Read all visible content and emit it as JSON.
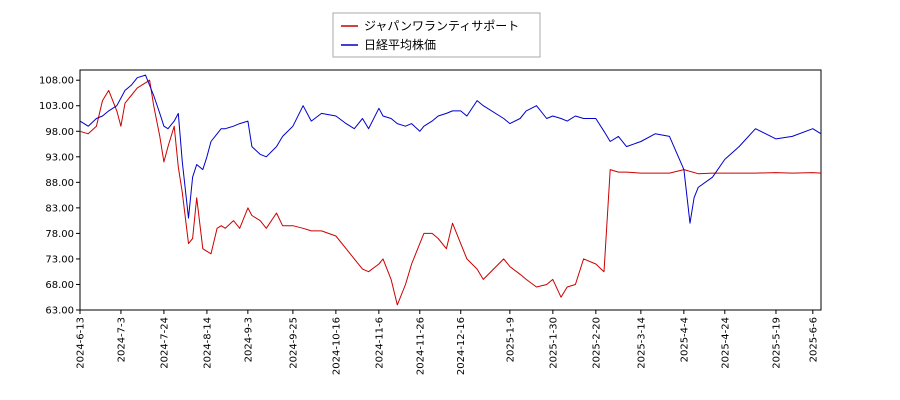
{
  "chart_data": {
    "type": "line",
    "title": "",
    "xlabel": "",
    "ylabel": "",
    "ylim": [
      63.0,
      110.0
    ],
    "xlim": [
      "2024-06-13",
      "2025-06-10"
    ],
    "grid": false,
    "legend": "top-center",
    "y_ticks": [
      63.0,
      68.0,
      73.0,
      78.0,
      83.0,
      88.0,
      93.0,
      98.0,
      103.0,
      108.0
    ],
    "y_tick_labels": [
      "63.00",
      "68.00",
      "73.00",
      "78.00",
      "83.00",
      "88.00",
      "93.00",
      "98.00",
      "103.00",
      "108.00"
    ],
    "x_ticks": [
      "2024-6-13",
      "2024-7-3",
      "2024-7-24",
      "2024-8-14",
      "2024-9-3",
      "2024-9-25",
      "2024-10-16",
      "2024-11-6",
      "2024-11-26",
      "2024-12-16",
      "2025-1-9",
      "2025-1-30",
      "2025-2-20",
      "2025-3-14",
      "2025-4-4",
      "2025-4-24",
      "2025-5-19",
      "2025-6-6"
    ],
    "series": [
      {
        "name": "ジャパンワランティサポート",
        "color": "#cc0000",
        "x": [
          "2024-06-13",
          "2024-06-17",
          "2024-06-21",
          "2024-06-24",
          "2024-06-27",
          "2024-07-01",
          "2024-07-03",
          "2024-07-05",
          "2024-07-08",
          "2024-07-11",
          "2024-07-15",
          "2024-07-17",
          "2024-07-19",
          "2024-07-22",
          "2024-07-24",
          "2024-07-26",
          "2024-07-29",
          "2024-07-31",
          "2024-08-02",
          "2024-08-05",
          "2024-08-07",
          "2024-08-09",
          "2024-08-12",
          "2024-08-14",
          "2024-08-16",
          "2024-08-19",
          "2024-08-21",
          "2024-08-23",
          "2024-08-27",
          "2024-08-30",
          "2024-09-03",
          "2024-09-05",
          "2024-09-09",
          "2024-09-12",
          "2024-09-17",
          "2024-09-20",
          "2024-09-25",
          "2024-09-30",
          "2024-10-04",
          "2024-10-09",
          "2024-10-16",
          "2024-10-21",
          "2024-10-25",
          "2024-10-29",
          "2024-11-01",
          "2024-11-06",
          "2024-11-08",
          "2024-11-12",
          "2024-11-15",
          "2024-11-19",
          "2024-11-22",
          "2024-11-26",
          "2024-11-28",
          "2024-12-02",
          "2024-12-05",
          "2024-12-09",
          "2024-12-12",
          "2024-12-16",
          "2024-12-19",
          "2024-12-24",
          "2024-12-27",
          "2025-01-06",
          "2025-01-09",
          "2025-01-14",
          "2025-01-17",
          "2025-01-22",
          "2025-01-27",
          "2025-01-30",
          "2025-02-03",
          "2025-02-06",
          "2025-02-10",
          "2025-02-14",
          "2025-02-20",
          "2025-02-24",
          "2025-02-27",
          "2025-03-03",
          "2025-03-07",
          "2025-03-14",
          "2025-03-21",
          "2025-03-28",
          "2025-04-04",
          "2025-04-11",
          "2025-04-18",
          "2025-04-24",
          "2025-05-01",
          "2025-05-09",
          "2025-05-19",
          "2025-05-27",
          "2025-06-06",
          "2025-06-10"
        ],
        "y": [
          98.0,
          97.5,
          99.0,
          104.0,
          106.0,
          102.0,
          99.0,
          103.5,
          105.0,
          106.5,
          107.5,
          108.0,
          103.0,
          97.0,
          92.0,
          95.0,
          99.0,
          91.0,
          86.0,
          76.0,
          77.0,
          85.0,
          75.0,
          74.5,
          74.0,
          79.0,
          79.5,
          79.0,
          80.5,
          79.0,
          83.0,
          81.5,
          80.5,
          79.0,
          82.0,
          79.5,
          79.5,
          79.0,
          78.5,
          78.5,
          77.5,
          75.0,
          73.0,
          71.0,
          70.5,
          72.0,
          73.0,
          69.0,
          64.0,
          68.0,
          72.0,
          76.0,
          78.0,
          78.0,
          77.0,
          75.0,
          80.0,
          76.0,
          73.0,
          71.0,
          69.0,
          73.0,
          71.5,
          70.0,
          69.0,
          67.5,
          68.0,
          69.0,
          65.5,
          67.5,
          68.0,
          73.0,
          72.0,
          70.5,
          90.5,
          90.0,
          90.0,
          89.8,
          89.8,
          89.8,
          90.5,
          89.7,
          89.8,
          89.8,
          89.8,
          89.8,
          89.9,
          89.8,
          89.9,
          89.8
        ]
      },
      {
        "name": "日経平均株価",
        "color": "#0000cc",
        "x": [
          "2024-06-13",
          "2024-06-17",
          "2024-06-21",
          "2024-06-24",
          "2024-06-27",
          "2024-07-01",
          "2024-07-03",
          "2024-07-05",
          "2024-07-08",
          "2024-07-11",
          "2024-07-15",
          "2024-07-17",
          "2024-07-19",
          "2024-07-22",
          "2024-07-24",
          "2024-07-26",
          "2024-07-29",
          "2024-07-31",
          "2024-08-02",
          "2024-08-05",
          "2024-08-07",
          "2024-08-09",
          "2024-08-12",
          "2024-08-14",
          "2024-08-16",
          "2024-08-19",
          "2024-08-21",
          "2024-08-23",
          "2024-08-27",
          "2024-08-30",
          "2024-09-03",
          "2024-09-05",
          "2024-09-09",
          "2024-09-12",
          "2024-09-17",
          "2024-09-20",
          "2024-09-25",
          "2024-09-30",
          "2024-10-04",
          "2024-10-09",
          "2024-10-16",
          "2024-10-21",
          "2024-10-25",
          "2024-10-29",
          "2024-11-01",
          "2024-11-06",
          "2024-11-08",
          "2024-11-12",
          "2024-11-15",
          "2024-11-19",
          "2024-11-22",
          "2024-11-26",
          "2024-11-28",
          "2024-12-02",
          "2024-12-05",
          "2024-12-09",
          "2024-12-12",
          "2024-12-16",
          "2024-12-19",
          "2024-12-24",
          "2024-12-27",
          "2025-01-06",
          "2025-01-09",
          "2025-01-14",
          "2025-01-17",
          "2025-01-22",
          "2025-01-27",
          "2025-01-30",
          "2025-02-03",
          "2025-02-06",
          "2025-02-10",
          "2025-02-14",
          "2025-02-20",
          "2025-02-24",
          "2025-02-27",
          "2025-03-03",
          "2025-03-07",
          "2025-03-14",
          "2025-03-21",
          "2025-03-28",
          "2025-04-04",
          "2025-04-07",
          "2025-04-09",
          "2025-04-11",
          "2025-04-18",
          "2025-04-24",
          "2025-05-01",
          "2025-05-09",
          "2025-05-19",
          "2025-05-27",
          "2025-06-06",
          "2025-06-10"
        ],
        "y": [
          100.0,
          99.0,
          100.5,
          101.0,
          102.0,
          103.0,
          104.5,
          106.0,
          107.0,
          108.5,
          109.0,
          107.0,
          105.0,
          101.5,
          99.0,
          98.5,
          100.0,
          101.5,
          92.0,
          81.0,
          89.0,
          91.5,
          90.5,
          93.0,
          96.0,
          97.5,
          98.5,
          98.5,
          99.0,
          99.5,
          100.0,
          95.0,
          93.5,
          93.0,
          95.0,
          97.0,
          99.0,
          103.0,
          100.0,
          101.5,
          101.0,
          99.5,
          98.5,
          100.5,
          98.5,
          102.5,
          101.0,
          100.5,
          99.5,
          99.0,
          99.5,
          98.0,
          99.0,
          100.0,
          101.0,
          101.5,
          102.0,
          102.0,
          101.0,
          104.0,
          103.0,
          100.5,
          99.5,
          100.5,
          102.0,
          103.0,
          100.5,
          101.0,
          100.5,
          100.0,
          101.0,
          100.5,
          100.5,
          98.0,
          96.0,
          97.0,
          95.0,
          96.0,
          97.5,
          97.0,
          90.5,
          80.0,
          85.0,
          87.0,
          89.0,
          92.5,
          95.0,
          98.5,
          96.5,
          97.0,
          98.5,
          97.5
        ]
      }
    ]
  },
  "legend": {
    "items": [
      {
        "label": "ジャパンワランティサポート",
        "color": "#cc0000"
      },
      {
        "label": "日経平均株価",
        "color": "#0000cc"
      }
    ]
  }
}
